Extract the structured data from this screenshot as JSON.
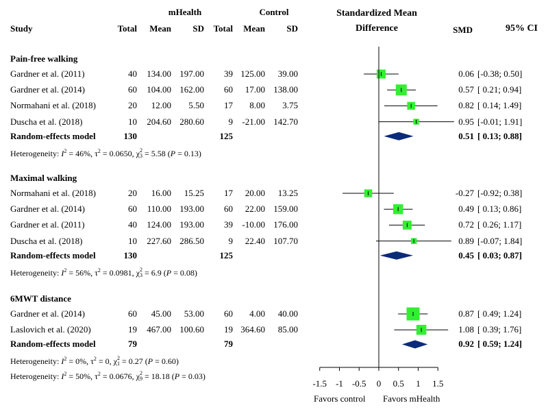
{
  "headers": {
    "group_mhealth": "mHealth",
    "group_control": "Control",
    "study": "Study",
    "total_mh": "Total",
    "mean_mh": "Mean",
    "sd_mh": "SD",
    "total_ct": "Total",
    "mean_ct": "Mean",
    "sd_ct": "SD",
    "smd_title_1": "Standardized Mean",
    "smd_title_2": "Difference",
    "smd": "SMD",
    "ci": "95% CI"
  },
  "subgroups": [
    {
      "title": "Pain-free walking",
      "studies": [
        {
          "study": "Gardner et al. (2011)",
          "total_mh": "40",
          "mean_mh": "134.00",
          "sd_mh": "197.00",
          "total_ct": "39",
          "mean_ct": "125.00",
          "sd_ct": "39.00",
          "smd": "0.06",
          "ci": "[-0.38; 0.50]"
        },
        {
          "study": "Gardner et al. (2014)",
          "total_mh": "60",
          "mean_mh": "104.00",
          "sd_mh": "162.00",
          "total_ct": "60",
          "mean_ct": "17.00",
          "sd_ct": "138.00",
          "smd": "0.57",
          "ci": "[ 0.21; 0.94]"
        },
        {
          "study": "Normahani et al. (2018)",
          "total_mh": "20",
          "mean_mh": "12.00",
          "sd_mh": "5.50",
          "total_ct": "17",
          "mean_ct": "8.00",
          "sd_ct": "3.75",
          "smd": "0.82",
          "ci": "[ 0.14; 1.49]"
        },
        {
          "study": "Duscha et al. (2018)",
          "total_mh": "10",
          "mean_mh": "204.60",
          "sd_mh": "280.60",
          "total_ct": "9",
          "mean_ct": "-21.00",
          "sd_ct": "142.70",
          "smd": "0.95",
          "ci": "[-0.01; 1.91]"
        }
      ],
      "model": {
        "label": "Random-effects model",
        "total_mh": "130",
        "total_ct": "125",
        "smd": "0.51",
        "ci": "[ 0.13; 0.88]"
      },
      "heterogeneity": "Heterogeneity: I² = 46%, τ² = 0.0650, χ²₃ = 5.58 (P = 0.13)"
    },
    {
      "title": "Maximal walking",
      "studies": [
        {
          "study": "Normahani et al. (2018)",
          "total_mh": "20",
          "mean_mh": "16.00",
          "sd_mh": "15.25",
          "total_ct": "17",
          "mean_ct": "20.00",
          "sd_ct": "13.25",
          "smd": "-0.27",
          "ci": "[-0.92; 0.38]"
        },
        {
          "study": "Gardner et al. (2014)",
          "total_mh": "60",
          "mean_mh": "110.00",
          "sd_mh": "193.00",
          "total_ct": "60",
          "mean_ct": "22.00",
          "sd_ct": "159.00",
          "smd": "0.49",
          "ci": "[ 0.13; 0.86]"
        },
        {
          "study": "Gardner et al. (2011)",
          "total_mh": "40",
          "mean_mh": "124.00",
          "sd_mh": "193.00",
          "total_ct": "39",
          "mean_ct": "-10.00",
          "sd_ct": "176.00",
          "smd": "0.72",
          "ci": "[ 0.26; 1.17]"
        },
        {
          "study": "Duscha et al. (2018)",
          "total_mh": "10",
          "mean_mh": "227.60",
          "sd_mh": "286.50",
          "total_ct": "9",
          "mean_ct": "22.40",
          "sd_ct": "107.70",
          "smd": "0.89",
          "ci": "[-0.07; 1.84]"
        }
      ],
      "model": {
        "label": "Random-effects model",
        "total_mh": "130",
        "total_ct": "125",
        "smd": "0.45",
        "ci": "[ 0.03; 0.87]"
      },
      "heterogeneity": "Heterogeneity: I² = 56%, τ² = 0.0981, χ²₃ = 6.9 (P = 0.08)"
    },
    {
      "title": "6MWT distance",
      "studies": [
        {
          "study": "Gardner et al. (2014)",
          "total_mh": "60",
          "mean_mh": "45.00",
          "sd_mh": "53.00",
          "total_ct": "60",
          "mean_ct": "4.00",
          "sd_ct": "40.00",
          "smd": "0.87",
          "ci": "[ 0.49; 1.24]"
        },
        {
          "study": "Laslovich et al. (2020)",
          "total_mh": "19",
          "mean_mh": "467.00",
          "sd_mh": "100.60",
          "total_ct": "19",
          "mean_ct": "364.60",
          "sd_ct": "85.00",
          "smd": "1.08",
          "ci": "[ 0.39; 1.76]"
        }
      ],
      "model": {
        "label": "Random-effects model",
        "total_mh": "79",
        "total_ct": "79",
        "smd": "0.92",
        "ci": "[ 0.59; 1.24]"
      },
      "heterogeneity": "Heterogeneity: I² = 0%, τ² = 0, χ²₁ = 0.27 (P = 0.60)"
    }
  ],
  "overall_heterogeneity": "Heterogeneity: I² = 50%, τ² = 0.0676, χ²₉ = 18.18 (P = 0.03)",
  "colors": {
    "square": "#33ee33",
    "diamond": "#0b2a7a",
    "line": "#000000"
  },
  "chart_data": {
    "type": "forest",
    "title": "Standardized Mean Difference",
    "xlim": [
      -1.5,
      1.5
    ],
    "x_ticks": [
      -1.5,
      -1,
      -0.5,
      0,
      0.5,
      1,
      1.5
    ],
    "x_tick_labels": [
      "-1.5",
      "-1",
      "-0.5",
      "0",
      "0.5",
      "1",
      "1.5"
    ],
    "xlabel_left": "Favors control",
    "xlabel_right": "Favors mHealth",
    "null_line": 0,
    "subgroups": [
      {
        "name": "Pain-free walking",
        "studies": [
          {
            "name": "Gardner et al. (2011)",
            "smd": 0.06,
            "lower": -0.38,
            "upper": 0.5,
            "weight": 6
          },
          {
            "name": "Gardner et al. (2014)",
            "smd": 0.57,
            "lower": 0.21,
            "upper": 0.94,
            "weight": 8
          },
          {
            "name": "Normahani et al. (2018)",
            "smd": 0.82,
            "lower": 0.14,
            "upper": 1.49,
            "weight": 5
          },
          {
            "name": "Duscha et al. (2018)",
            "smd": 0.95,
            "lower": -0.01,
            "upper": 1.91,
            "weight": 3
          }
        ],
        "pooled": {
          "smd": 0.51,
          "lower": 0.13,
          "upper": 0.88
        }
      },
      {
        "name": "Maximal walking",
        "studies": [
          {
            "name": "Normahani et al. (2018)",
            "smd": -0.27,
            "lower": -0.92,
            "upper": 0.38,
            "weight": 5
          },
          {
            "name": "Gardner et al. (2014)",
            "smd": 0.49,
            "lower": 0.13,
            "upper": 0.86,
            "weight": 7
          },
          {
            "name": "Gardner et al. (2011)",
            "smd": 0.72,
            "lower": 0.26,
            "upper": 1.17,
            "weight": 6
          },
          {
            "name": "Duscha et al. (2018)",
            "smd": 0.89,
            "lower": -0.07,
            "upper": 1.84,
            "weight": 3
          }
        ],
        "pooled": {
          "smd": 0.45,
          "lower": 0.03,
          "upper": 0.87
        }
      },
      {
        "name": "6MWT distance",
        "studies": [
          {
            "name": "Gardner et al. (2014)",
            "smd": 0.87,
            "lower": 0.49,
            "upper": 1.24,
            "weight": 10
          },
          {
            "name": "Laslovich et al. (2020)",
            "smd": 1.08,
            "lower": 0.39,
            "upper": 1.76,
            "weight": 7
          }
        ],
        "pooled": {
          "smd": 0.92,
          "lower": 0.59,
          "upper": 1.24
        }
      }
    ]
  }
}
